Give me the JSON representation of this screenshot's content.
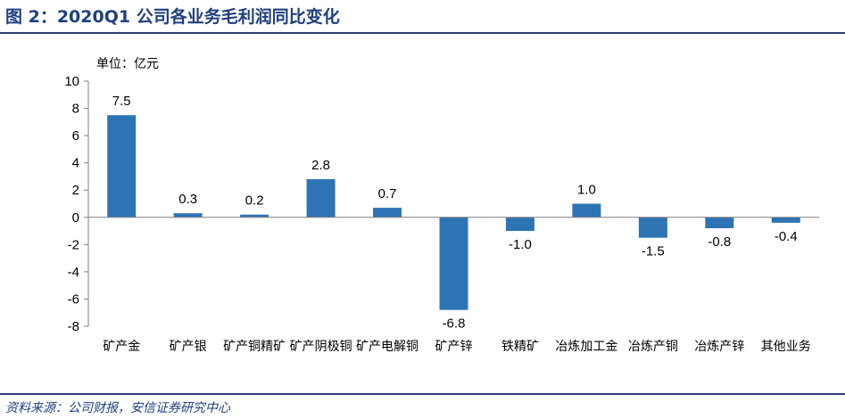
{
  "figure": {
    "title": "图 2：2020Q1 公司各业务毛利润同比变化",
    "source": "资料来源：公司财报，安信证券研究中心",
    "unit_label": "单位：亿元"
  },
  "colors": {
    "bar": "#2e74b5",
    "axis": "#7f7f7f",
    "rule": "#2b3f73",
    "title": "#1f3f7f"
  },
  "chart_data": {
    "type": "bar",
    "categories": [
      "矿产金",
      "矿产银",
      "矿产铜精矿",
      "矿产阴极铜",
      "矿产电解铜",
      "矿产锌",
      "铁精矿",
      "冶炼加工金",
      "冶炼产铜",
      "冶炼产锌",
      "其他业务"
    ],
    "values": [
      7.5,
      0.3,
      0.2,
      2.8,
      0.7,
      -6.8,
      -1.0,
      1.0,
      -1.5,
      -0.8,
      -0.4
    ],
    "labels": [
      "7.5",
      "0.3",
      "0.2",
      "2.8",
      "0.7",
      "-6.8",
      "-1.0",
      "1.0",
      "-1.5",
      "-0.8",
      "-0.4"
    ],
    "yticks": [
      "10",
      "8",
      "6",
      "4",
      "2",
      "0",
      "-2",
      "-4",
      "-6",
      "-8"
    ],
    "ylim": [
      -8,
      10
    ],
    "grid": false,
    "legend": "none"
  }
}
